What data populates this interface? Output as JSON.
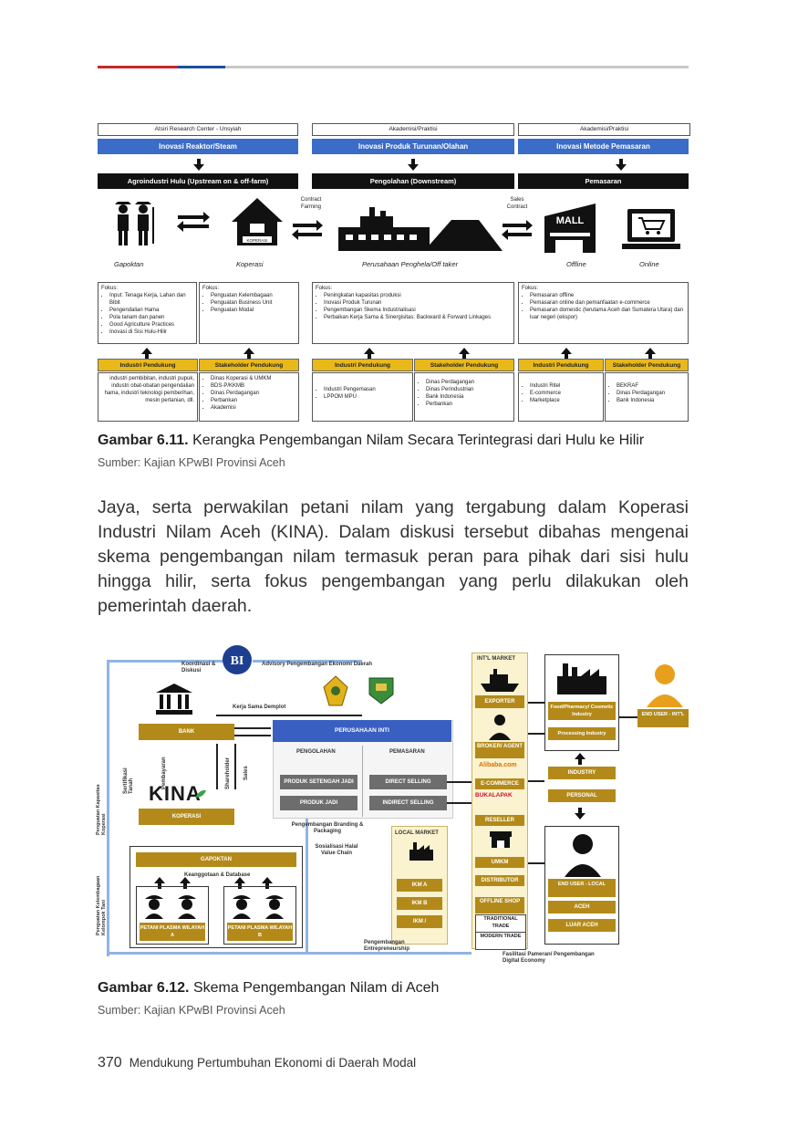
{
  "fig1": {
    "headers": [
      "Atsiri Research Center - Unsyiah",
      "Akademisi/Praktisi",
      "Akademisi/Praktisi"
    ],
    "innovations": [
      "Inovasi Reaktor/Steam",
      "Inovasi Produk Turunan/Olahan",
      "Inovasi Metode Pemasaran"
    ],
    "stages": [
      "Agroindustri Hulu (Upstream on & off-farm)",
      "Pengolahan (Downstream)",
      "Pemasaran"
    ],
    "contract_farming": "Contract Farming",
    "sales_contract": "Sales Contract",
    "koperasi_sign": "KOPERASI",
    "mall_sign": "MALL",
    "actors": [
      "Gapoktan",
      "Koperasi",
      "Perusahaan Penghela/Off taker",
      "Offline",
      "Online"
    ],
    "focus": [
      {
        "title": "Fokus:",
        "items": [
          "Input: Tenaga Kerja, Lahan dan Bibit",
          "Pengendalian Hama",
          "Pola tanam dan panen",
          "Good Agriculture Practices",
          "Inovasi di Sisi Hulu-Hilir"
        ]
      },
      {
        "title": "Fokus:",
        "items": [
          "Penguatan Kelembagaan",
          "Penguatan Business Unit",
          "Penguatan Modal"
        ]
      },
      {
        "title": "Fokus:",
        "items": [
          "Peningkatan kapasitas produksi",
          "Inovasi Produk Turunan",
          "Pengembangan Skema Industrialisasi",
          "Perbaikan Kerja Sama & Sinergisitas: Backward & Forward Linkages"
        ]
      },
      {
        "title": "Fokus:",
        "items": [
          "Pemasaran offline",
          "Pemasaran online dan pemanfaatan e-commerce",
          "Pemasaran domestic (terutama Aceh dan Sumatera Utara) dan luar negeri (ekspor)"
        ]
      }
    ],
    "support_labels": [
      "Industri Pendukung",
      "Stakeholder Pendukung",
      "Industri Pendukung",
      "Stakeholder Pendukung",
      "Industri Pendukung",
      "Stakeholder Pendukung"
    ],
    "support_a": "industri pembibitan, industri pupuk, industri obat-obatan pengendalian hama, industri teknologi pemberihan, mesin pertanian, dll.",
    "support_b": [
      "Dinas Koperasi & UMKM",
      "BDS-P/KKMB",
      "Dinas Perdagangan",
      "Perbankan",
      "Akademisi"
    ],
    "support_c": [
      "Industri Pengemasan",
      "LPPOM MPU"
    ],
    "support_d": [
      "Dinas Perdagangan",
      "Dinas Perindustrian",
      "Bank Indonesia",
      "Perbankan"
    ],
    "support_e": [
      "Industri Ritel",
      "E-commerce",
      "Marketplace"
    ],
    "support_f": [
      "BEKRAF",
      "Dinas Perdagangan",
      "Bank Indonesia"
    ]
  },
  "caption1": {
    "label": "Gambar 6.11.",
    "text": " Kerangka Pengembangan Nilam Secara Terintegrasi dari Hulu ke Hilir"
  },
  "source1": "Sumber: Kajian KPwBI Provinsi Aceh",
  "paragraph": "Jaya, serta perwakilan petani nilam yang tergabung dalam Koperasi Industri Nilam Aceh (KINA). Dalam diskusi tersebut dibahas mengenai skema pengembangan nilam termasuk peran para pihak dari sisi hulu hingga hilir, serta fokus pengembangan yang perlu dilakukan oleh pemerintah daerah.",
  "fig2": {
    "bi_logo": "BI",
    "koordinasi": "Koordinasi & Diskusi",
    "advisory": "Advisory Pengembangan Ekonomi Daerah",
    "kerja_sama": "Kerja Sama Demplot",
    "bank": "BANK",
    "perusahaan_inti": "PERUSAHAAN INTI",
    "pengolahan": "PENGOLAHAN",
    "pemasaran": "PEMASARAN",
    "sertifikasi": "Sertifikasi Tanah",
    "pembayaran": "Pembayaran",
    "shareholder": "Shareholder",
    "sales": "Sales",
    "produk_setengah": "PRODUK SETENGAH JADI",
    "direct": "DIRECT SELLING",
    "produk_jadi": "PRODUK JADI",
    "indirect": "INDIRECT SELLING",
    "kina_logo": "KINA",
    "koperasi": "KOPERASI",
    "branding": "Pengembangan Branding & Packaging",
    "sosialisasi": "Sosialisasi Halal Value Chain",
    "local_market": "LOCAL MARKET",
    "gapoktan": "GAPOKTAN",
    "keanggotaan": "Keanggotaan & Database",
    "petani_a": "PETANI PLASMA WILAYAH A",
    "petani_b": "PETANI PLASMA WILAYAH B",
    "ikm": [
      "IKM A",
      "IKM B",
      "IKM /"
    ],
    "side_left_1": "Penguatan Kapasitas Koperasi",
    "side_left_2": "Penguatan Kelembagaan Kelompok Tani",
    "intl_market": "INT'L MARKET",
    "chain": [
      "EXPORTER",
      "BROKER/ AGENT",
      "E-COMMERCE",
      "RESELLER",
      "UMKM",
      "DISTRIBUTOR",
      "OFFLINE SHOP",
      "TRADITIONAL TRADE",
      "MODERN TRADE"
    ],
    "alibaba": "Alibaba.com",
    "bukalapak": "BUKALAPAK",
    "food_pharmacy": "Food/Pharmacy/ Cosmetic Industry",
    "processing": "Processing Industry",
    "end_user_intl": "END USER - INT'L",
    "industry": "INDUSTRY",
    "personal": "PERSONAL",
    "end_user_local": "END USER - LOCAL",
    "aceh": "ACEH",
    "luar_aceh": "LUAR ACEH",
    "entrepreneurship": "Pengembangan Entrepreneurship",
    "fasilitasi": "Fasilitasi Pameran/ Pengembangan Digital Economy"
  },
  "caption2": {
    "label": "Gambar 6.12.",
    "text": " Skema Pengembangan Nilam di Aceh"
  },
  "source2": "Sumber: Kajian KPwBI Provinsi Aceh",
  "footer": {
    "page": "370",
    "title": "Mendukung Pertumbuhan Ekonomi di Daerah Modal"
  }
}
